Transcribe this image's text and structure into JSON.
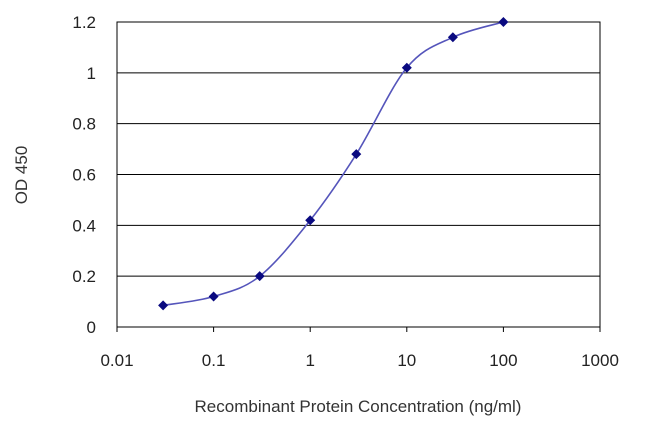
{
  "chart_data": {
    "type": "line",
    "title": "",
    "xlabel": "Recombinant Protein Concentration (ng/ml)",
    "ylabel": "OD 450",
    "x_scale": "log",
    "xlim": [
      0.01,
      1000
    ],
    "ylim": [
      0,
      1.2
    ],
    "x_ticks": [
      "0.01",
      "0.1",
      "1",
      "10",
      "100",
      "1000"
    ],
    "y_ticks": [
      "0",
      "0.2",
      "0.4",
      "0.6",
      "0.8",
      "1",
      "1.2"
    ],
    "grid": "horizontal",
    "legend": "none",
    "series": [
      {
        "x": [
          0.03,
          0.1,
          0.3,
          1,
          3,
          10,
          30,
          100
        ],
        "y": [
          0.085,
          0.12,
          0.2,
          0.42,
          0.68,
          1.02,
          1.14,
          1.2
        ]
      }
    ],
    "colors": {
      "line": "#5555bb",
      "marker": "#0a0a80",
      "grid": "#000000",
      "frame": "#000000"
    }
  }
}
